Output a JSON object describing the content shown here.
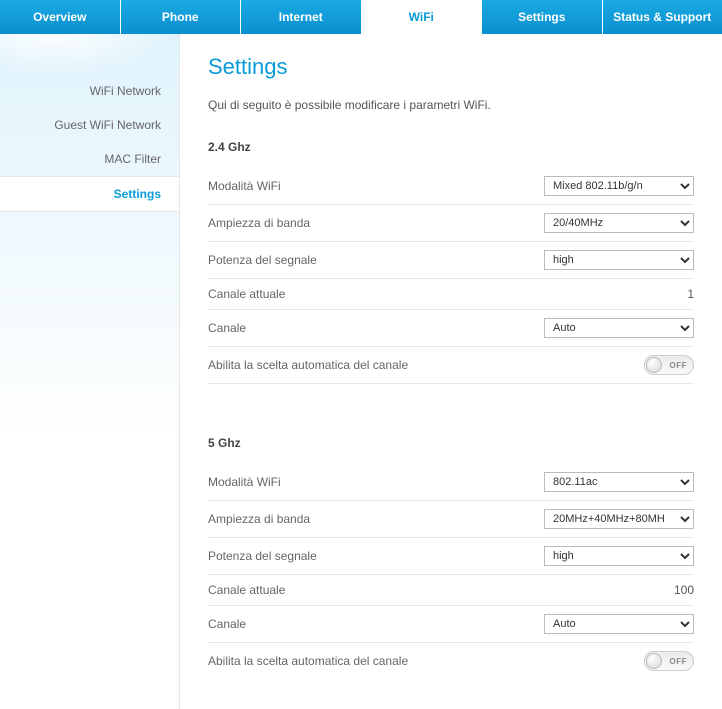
{
  "topnav": {
    "tabs": [
      {
        "label": "Overview"
      },
      {
        "label": "Phone"
      },
      {
        "label": "Internet"
      },
      {
        "label": "WiFi",
        "active": true
      },
      {
        "label": "Settings"
      },
      {
        "label": "Status & Support"
      }
    ]
  },
  "sidebar": {
    "items": [
      {
        "label": "WiFi Network"
      },
      {
        "label": "Guest WiFi Network"
      },
      {
        "label": "MAC Filter"
      },
      {
        "label": "Settings",
        "active": true
      }
    ]
  },
  "page": {
    "title": "Settings",
    "intro": "Qui di seguito è possibile modificare i parametri WiFi."
  },
  "band24": {
    "heading": "2.4 Ghz",
    "mode_label": "Modalità WiFi",
    "mode_value": "Mixed 802.11b/g/n",
    "bandwidth_label": "Ampiezza di banda",
    "bandwidth_value": "20/40MHz",
    "power_label": "Potenza del segnale",
    "power_value": "high",
    "current_channel_label": "Canale attuale",
    "current_channel_value": "1",
    "channel_label": "Canale",
    "channel_value": "Auto",
    "auto_label": "Abilita la scelta automatica del canale",
    "toggle_text": "OFF"
  },
  "band5": {
    "heading": "5 Ghz",
    "mode_label": "Modalità WiFi",
    "mode_value": "802.11ac",
    "bandwidth_label": "Ampiezza di banda",
    "bandwidth_value": "20MHz+40MHz+80MH",
    "power_label": "Potenza del segnale",
    "power_value": "high",
    "current_channel_label": "Canale attuale",
    "current_channel_value": "100",
    "channel_label": "Canale",
    "channel_value": "Auto",
    "auto_label": "Abilita la scelta automatica del canale",
    "toggle_text": "OFF"
  }
}
